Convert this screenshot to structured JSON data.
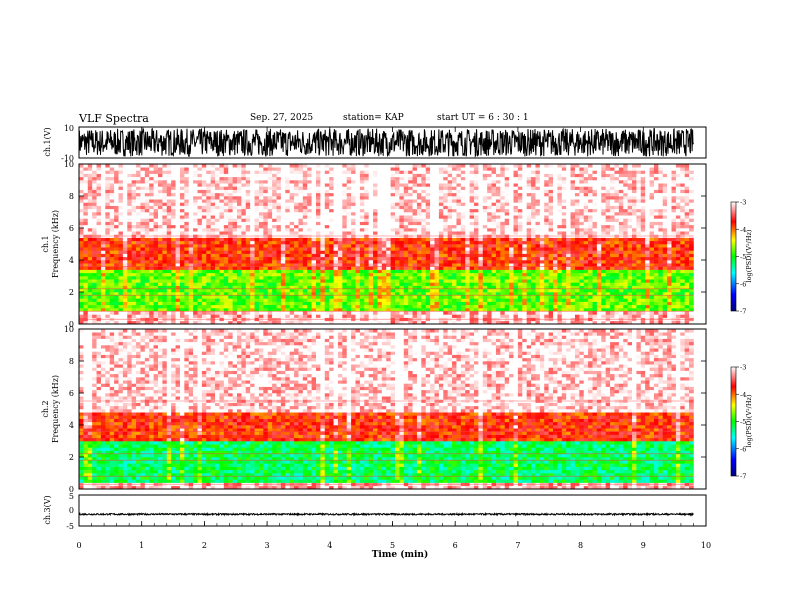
{
  "header": {
    "title": "VLF Spectra",
    "date": "Sep. 27, 2025",
    "station": "station= KAP",
    "start": "start  UT =  6 : 30 : 1"
  },
  "chart_data": [
    {
      "type": "line",
      "title": "ch.1 waveform",
      "ylabel": "ch.1(V)",
      "ylim": [
        -10,
        10
      ],
      "yticks": [
        "10",
        "-10"
      ],
      "xlim": [
        0,
        10
      ],
      "description_values": {
        "amplitude_range_V": [
          -9,
          9
        ],
        "trace_end_min": 9.8
      }
    },
    {
      "type": "heatmap",
      "title": "ch.1 spectrogram",
      "ylabel": "ch.1\nFrequency  (kHz)",
      "ylim": [
        0,
        10
      ],
      "yticks": [
        "0",
        "2",
        "4",
        "6",
        "8",
        "10"
      ],
      "xlim": [
        0,
        9.8
      ],
      "colorbar": {
        "label": "log(PSD)(V²/Hz)",
        "range": [
          -7,
          -3
        ],
        "ticks": [
          "-3",
          "-4",
          "-5",
          "-6",
          "-7"
        ]
      },
      "bands": [
        {
          "from_kHz": 0,
          "to_kHz": 0.8,
          "level": -3.2
        },
        {
          "from_kHz": 0.8,
          "to_kHz": 3.5,
          "level": -4.8
        },
        {
          "from_kHz": 3.5,
          "to_kHz": 5.5,
          "level": -3.8
        },
        {
          "from_kHz": 5.5,
          "to_kHz": 10,
          "level": -3.1
        }
      ]
    },
    {
      "type": "heatmap",
      "title": "ch.2 spectrogram",
      "ylabel": "ch.2\nFrequency  (kHz)",
      "ylim": [
        0,
        10
      ],
      "yticks": [
        "0",
        "2",
        "4",
        "6",
        "8",
        "10"
      ],
      "xlim": [
        0,
        9.8
      ],
      "colorbar": {
        "label": "log(PSD)(V²/Hz)",
        "range": [
          -7,
          -3
        ],
        "ticks": [
          "-3",
          "-4",
          "-5",
          "-6",
          "-7"
        ]
      },
      "bands": [
        {
          "from_kHz": 0,
          "to_kHz": 0.4,
          "level": -3.2
        },
        {
          "from_kHz": 0.4,
          "to_kHz": 3.0,
          "level": -5.2
        },
        {
          "from_kHz": 3.0,
          "to_kHz": 4.8,
          "level": -3.8
        },
        {
          "from_kHz": 4.8,
          "to_kHz": 10,
          "level": -3.1
        }
      ]
    },
    {
      "type": "line",
      "title": "ch.3 waveform",
      "ylabel": "ch.3(V)",
      "ylim": [
        -5,
        5
      ],
      "yticks": [
        "5",
        "0",
        "-5"
      ],
      "xlim": [
        0,
        10
      ],
      "description_values": {
        "mean_V": -1.2,
        "amplitude_range_V": 0.5,
        "trace_end_min": 9.8
      }
    }
  ],
  "xaxis": {
    "label": "Time  (min)",
    "range": [
      0,
      10
    ],
    "ticks": [
      "0",
      "1",
      "2",
      "3",
      "4",
      "5",
      "6",
      "7",
      "8",
      "9",
      "10"
    ]
  }
}
